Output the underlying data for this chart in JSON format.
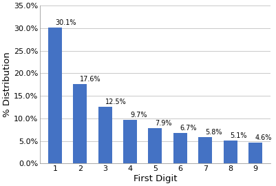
{
  "categories": [
    1,
    2,
    3,
    4,
    5,
    6,
    7,
    8,
    9
  ],
  "values": [
    30.1,
    17.6,
    12.5,
    9.7,
    7.9,
    6.7,
    5.8,
    5.1,
    4.6
  ],
  "labels": [
    "30.1%",
    "17.6%",
    "12.5%",
    "9.7%",
    "7.9%",
    "6.7%",
    "5.8%",
    "5.1%",
    "4.6%"
  ],
  "bar_color": "#4472C4",
  "xlabel": "First Digit",
  "ylabel": "% Distribution",
  "ylim": [
    0,
    35.0
  ],
  "yticks": [
    0,
    5.0,
    10.0,
    15.0,
    20.0,
    25.0,
    30.0,
    35.0
  ],
  "ytick_labels": [
    "0.0%",
    "5.0%",
    "10.0%",
    "15.0%",
    "20.0%",
    "25.0%",
    "30.0%",
    "35.0%"
  ],
  "grid_color": "#c0c0c0",
  "background_color": "#ffffff",
  "label_fontsize": 7.0,
  "axis_label_fontsize": 9.5,
  "tick_fontsize": 8.0,
  "bar_width": 0.55
}
